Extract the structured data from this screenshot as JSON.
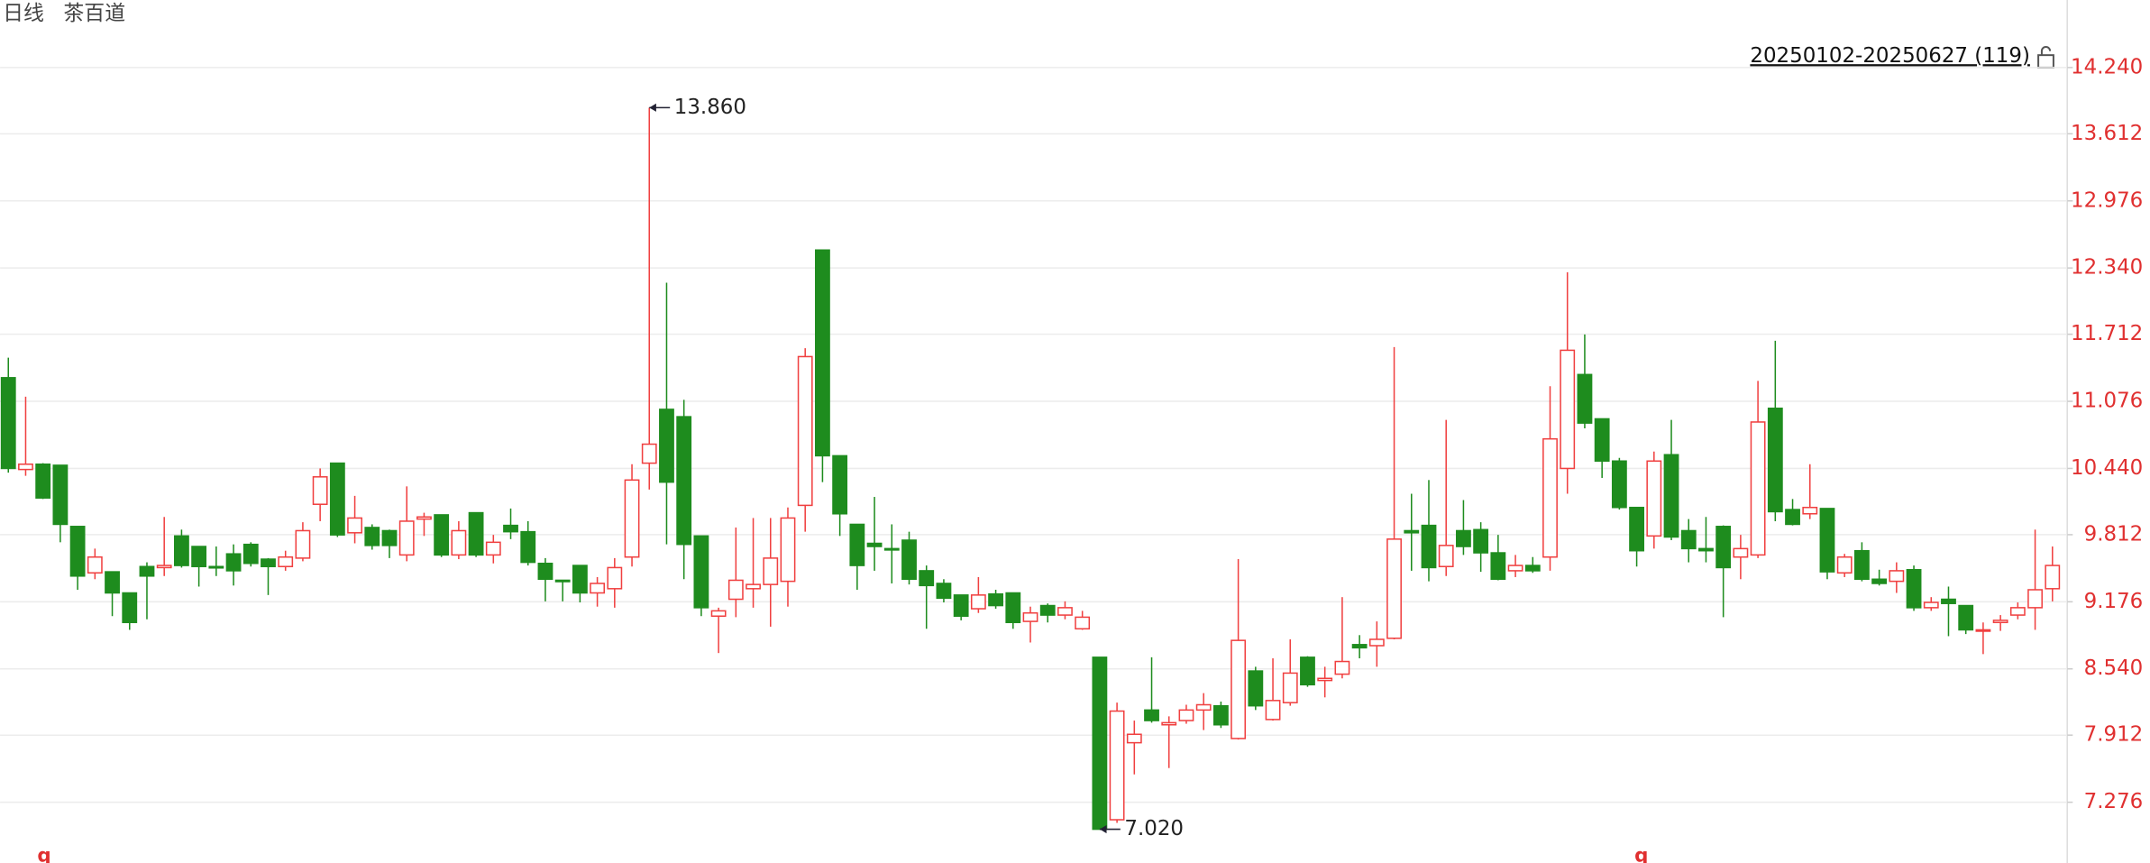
{
  "chart_data": {
    "type": "candlestick",
    "period": "日线",
    "title": "茶百道",
    "range_label": "20250102-20250627 (119)",
    "max_label": "13.860",
    "min_label": "7.020",
    "markers": [
      "q",
      "q"
    ],
    "up_color": "#f04040",
    "down_color": "#1e8c1e",
    "axis_color": "#e03030",
    "grid": true,
    "ylim": [
      6.7,
      14.88
    ],
    "yticks": [
      {
        "value": 14.24,
        "label": "14.240"
      },
      13.612,
      12.976,
      {
        "value": 12.34,
        "label": "12.340"
      },
      11.712,
      11.076,
      {
        "value": 10.44,
        "label": "10.440"
      },
      9.812,
      9.176,
      {
        "value": 8.54,
        "label": "8.540"
      },
      7.912,
      7.276
    ],
    "open": [
      11.3,
      10.43,
      10.48,
      10.47,
      9.89,
      9.45,
      9.46,
      9.26,
      9.51,
      9.5,
      9.8,
      9.7,
      9.51,
      9.63,
      9.72,
      9.58,
      9.51,
      9.59,
      10.1,
      10.49,
      9.83,
      9.88,
      9.85,
      9.62,
      9.96,
      10.0,
      9.62,
      10.02,
      9.62,
      9.9,
      9.84,
      9.54,
      9.38,
      9.52,
      9.26,
      9.3,
      9.6,
      10.49,
      11.0,
      10.93,
      9.8,
      9.04,
      9.2,
      9.3,
      9.34,
      9.37,
      10.09,
      12.51,
      10.56,
      9.91,
      9.73,
      9.68,
      9.76,
      9.47,
      9.35,
      9.24,
      9.11,
      9.25,
      9.26,
      8.99,
      9.14,
      9.05,
      8.92,
      8.65,
      7.11,
      7.84,
      8.15,
      8.01,
      8.05,
      8.15,
      8.19,
      7.88,
      8.52,
      8.06,
      8.22,
      8.65,
      8.43,
      8.49,
      8.77,
      8.76,
      8.83,
      9.85,
      9.9,
      9.51,
      9.85,
      9.86,
      9.64,
      9.47,
      9.52,
      9.6,
      10.44,
      11.33,
      10.91,
      10.51,
      10.07,
      9.8,
      10.57,
      9.85,
      9.68,
      9.89,
      9.6,
      9.62,
      11.01,
      10.05,
      10.01,
      10.06,
      9.45,
      9.66,
      9.39,
      9.37,
      9.48,
      9.12,
      9.2,
      9.14,
      8.9,
      8.98,
      9.05,
      9.12,
      9.3
    ],
    "high": [
      11.49,
      11.12,
      10.49,
      10.47,
      9.89,
      9.68,
      9.46,
      9.26,
      9.55,
      9.98,
      9.86,
      9.7,
      9.7,
      9.72,
      9.74,
      9.59,
      9.66,
      9.93,
      10.44,
      10.49,
      10.18,
      9.91,
      9.86,
      10.27,
      10.02,
      10.0,
      9.94,
      10.02,
      9.81,
      10.06,
      9.94,
      9.59,
      9.38,
      9.52,
      9.41,
      9.59,
      10.48,
      13.86,
      12.2,
      11.09,
      9.8,
      9.12,
      9.88,
      9.97,
      9.97,
      10.07,
      11.58,
      12.51,
      10.56,
      9.91,
      10.17,
      9.91,
      9.84,
      9.52,
      9.39,
      9.24,
      9.41,
      9.29,
      9.26,
      9.13,
      9.16,
      9.18,
      9.09,
      8.65,
      8.22,
      8.05,
      8.65,
      8.09,
      8.2,
      8.31,
      8.23,
      9.58,
      8.56,
      8.64,
      8.82,
      8.66,
      8.56,
      9.22,
      8.86,
      8.99,
      11.59,
      10.2,
      10.33,
      10.9,
      10.14,
      9.93,
      9.81,
      9.62,
      9.6,
      11.22,
      12.3,
      11.71,
      10.91,
      10.54,
      10.07,
      10.6,
      10.9,
      9.96,
      9.98,
      9.9,
      9.81,
      11.27,
      11.65,
      10.15,
      10.48,
      10.06,
      9.63,
      9.74,
      9.48,
      9.55,
      9.52,
      9.22,
      9.32,
      9.14,
      8.98,
      9.05,
      9.17,
      9.86,
      9.7
    ],
    "low": [
      10.4,
      10.37,
      10.15,
      9.74,
      9.29,
      9.39,
      9.04,
      8.91,
      9.01,
      9.42,
      9.5,
      9.32,
      9.42,
      9.33,
      9.51,
      9.24,
      9.47,
      9.56,
      9.94,
      9.79,
      9.73,
      9.67,
      9.59,
      9.56,
      9.8,
      9.6,
      9.58,
      9.6,
      9.54,
      9.77,
      9.52,
      9.18,
      9.18,
      9.17,
      9.13,
      9.12,
      9.51,
      10.24,
      9.72,
      9.39,
      9.04,
      8.69,
      9.03,
      9.12,
      8.94,
      9.13,
      9.84,
      10.31,
      9.8,
      9.29,
      9.47,
      9.35,
      9.34,
      8.92,
      9.17,
      9.0,
      9.07,
      9.11,
      8.92,
      8.79,
      8.98,
      9.01,
      8.91,
      7.02,
      7.08,
      7.54,
      8.03,
      7.6,
      8.02,
      7.96,
      7.98,
      7.87,
      8.15,
      8.05,
      8.19,
      8.37,
      8.27,
      8.45,
      8.64,
      8.56,
      8.82,
      9.47,
      9.37,
      9.42,
      9.62,
      9.46,
      9.38,
      9.41,
      9.45,
      9.47,
      10.2,
      10.82,
      10.35,
      10.05,
      9.51,
      9.68,
      9.76,
      9.55,
      9.55,
      9.03,
      9.39,
      9.59,
      9.94,
      9.9,
      9.96,
      9.39,
      9.41,
      9.37,
      9.33,
      9.26,
      9.09,
      9.09,
      8.85,
      8.87,
      8.68,
      8.9,
      9.01,
      8.91,
      9.18
    ],
    "close": [
      10.44,
      10.48,
      10.16,
      9.91,
      9.42,
      9.6,
      9.26,
      8.98,
      9.42,
      9.52,
      9.52,
      9.51,
      9.5,
      9.47,
      9.54,
      9.51,
      9.6,
      9.85,
      10.36,
      9.81,
      9.97,
      9.71,
      9.71,
      9.94,
      9.98,
      9.62,
      9.85,
      9.62,
      9.74,
      9.84,
      9.55,
      9.39,
      9.37,
      9.26,
      9.35,
      9.5,
      10.33,
      10.67,
      10.31,
      9.72,
      9.12,
      9.09,
      9.38,
      9.34,
      9.59,
      9.97,
      11.5,
      10.56,
      10.01,
      9.52,
      9.7,
      9.67,
      9.39,
      9.33,
      9.21,
      9.04,
      9.24,
      9.14,
      8.98,
      9.07,
      9.05,
      9.12,
      9.03,
      7.02,
      8.14,
      7.92,
      8.05,
      8.03,
      8.15,
      8.2,
      8.01,
      8.81,
      8.19,
      8.24,
      8.5,
      8.39,
      8.45,
      8.61,
      8.74,
      8.82,
      9.77,
      9.83,
      9.5,
      9.71,
      9.7,
      9.64,
      9.39,
      9.52,
      9.47,
      10.72,
      11.56,
      10.87,
      10.51,
      10.07,
      9.66,
      10.51,
      9.79,
      9.68,
      9.66,
      9.5,
      9.68,
      10.88,
      10.03,
      9.91,
      10.07,
      9.46,
      9.6,
      9.39,
      9.35,
      9.47,
      9.12,
      9.17,
      9.16,
      8.91,
      8.91,
      9.0,
      9.12,
      9.29,
      9.52
    ]
  }
}
